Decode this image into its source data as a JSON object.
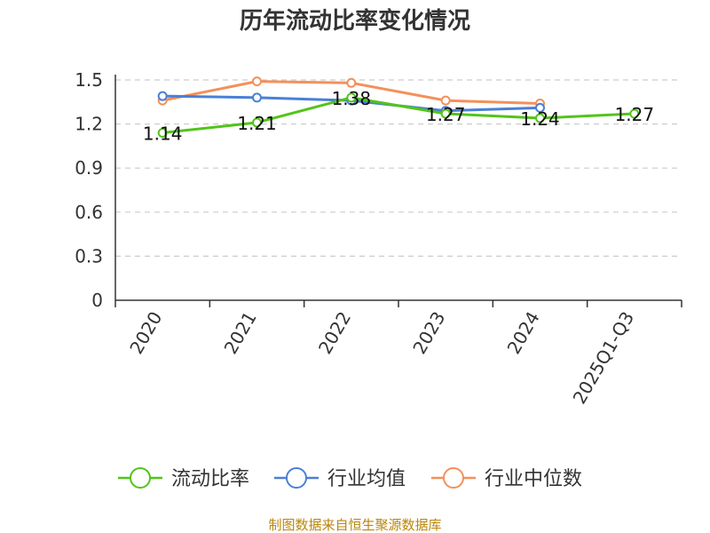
{
  "chart_data": {
    "type": "line",
    "title": "历年流动比率变化情况",
    "categories": [
      "2020",
      "2021",
      "2022",
      "2023",
      "2024",
      "2025Q1-Q3"
    ],
    "series": [
      {
        "name": "流动比率",
        "color": "#52c41a",
        "values": [
          1.14,
          1.21,
          1.38,
          1.27,
          1.24,
          1.27
        ],
        "labels": [
          "1.14",
          "1.21",
          "1.38",
          "1.27",
          "1.24",
          "1.27"
        ]
      },
      {
        "name": "行业均值",
        "color": "#4a7fd8",
        "values": [
          1.39,
          1.38,
          1.36,
          1.29,
          1.31,
          null
        ]
      },
      {
        "name": "行业中位数",
        "color": "#f4905a",
        "values": [
          1.36,
          1.49,
          1.48,
          1.36,
          1.34,
          null
        ]
      }
    ],
    "ylim": [
      0,
      1.5
    ],
    "yticks": [
      "0",
      "0.3",
      "0.6",
      "0.9",
      "1.2",
      "1.5"
    ],
    "grid": true,
    "legend_position": "bottom"
  },
  "footer": "制图数据来自恒生聚源数据库"
}
